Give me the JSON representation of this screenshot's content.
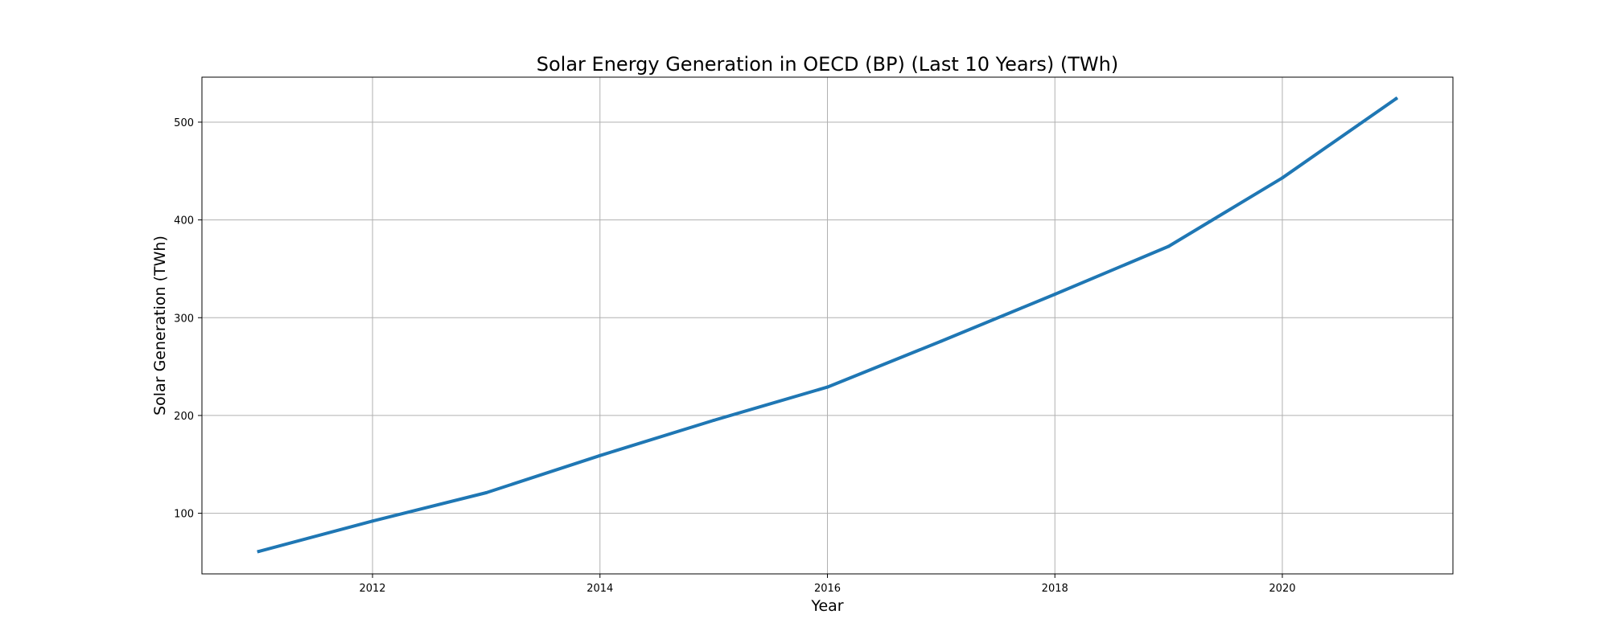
{
  "chart_data": {
    "type": "line",
    "title": "Solar Energy Generation in OECD (BP) (Last 10 Years) (TWh)",
    "xlabel": "Year",
    "ylabel": "Solar Generation (TWh)",
    "x": [
      2011,
      2012,
      2013,
      2014,
      2015,
      2016,
      2017,
      2018,
      2019,
      2020,
      2021
    ],
    "series": [
      {
        "values": [
          61,
          92,
          121,
          159,
          195,
          229,
          276,
          324,
          373,
          443,
          524
        ],
        "color": "#1f77b4"
      }
    ],
    "xlim": [
      2010.5,
      2021.5
    ],
    "ylim": [
      38,
      546
    ],
    "xticks": [
      2012,
      2014,
      2016,
      2018,
      2020
    ],
    "yticks": [
      100,
      200,
      300,
      400,
      500
    ],
    "grid": true,
    "legend": "none"
  }
}
